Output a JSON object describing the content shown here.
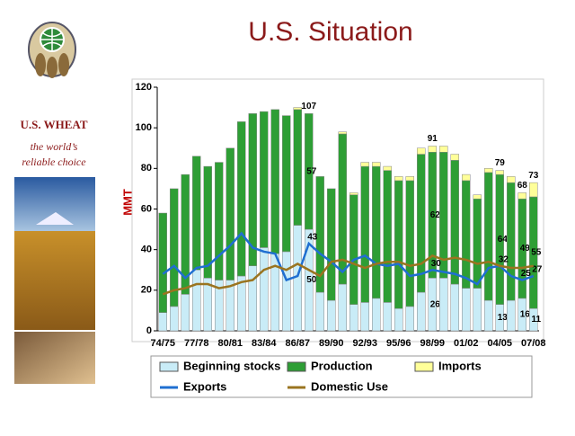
{
  "brand": {
    "name": "U.S. WHEAT",
    "tagline_1": "the world’s",
    "tagline_2": "reliable choice"
  },
  "chart_data": {
    "type": "stacked-bar-line",
    "title": "U.S. Situation",
    "y_label": "MMT",
    "categories": [
      "74/75",
      null,
      null,
      "77/78",
      null,
      null,
      "80/81",
      null,
      null,
      "83/84",
      null,
      null,
      "86/87",
      null,
      null,
      "89/90",
      null,
      null,
      "92/93",
      null,
      null,
      "95/96",
      null,
      null,
      "98/99",
      null,
      null,
      "01/02",
      null,
      null,
      "04/05",
      null,
      null,
      "07/08"
    ],
    "ylim": [
      0,
      120
    ],
    "yticks": [
      0,
      20,
      40,
      60,
      80,
      100,
      120
    ],
    "series": [
      {
        "name": "Beginning stocks",
        "kind": "bar",
        "color": "#c9ecf7",
        "values": [
          9,
          12,
          18,
          30,
          26,
          25,
          25,
          27,
          32,
          41,
          38,
          39,
          52,
          50,
          19,
          15,
          23,
          13,
          14,
          16,
          14,
          11,
          12,
          19,
          26,
          26,
          23,
          21,
          21,
          15,
          13,
          15,
          16,
          11
        ],
        "value_labels": [
          null,
          null,
          null,
          null,
          null,
          null,
          null,
          null,
          null,
          null,
          null,
          null,
          null,
          "50",
          null,
          null,
          null,
          null,
          null,
          null,
          null,
          null,
          null,
          null,
          "26",
          null,
          null,
          null,
          null,
          null,
          "13",
          null,
          "16",
          "11"
        ]
      },
      {
        "name": "Production",
        "kind": "bar",
        "color": "#2e9e35",
        "values": [
          49,
          58,
          59,
          56,
          55,
          58,
          65,
          76,
          75,
          67,
          71,
          67,
          57,
          57,
          57,
          55,
          74,
          54,
          67,
          65,
          65,
          63,
          62,
          68,
          62,
          62,
          61,
          53,
          44,
          63,
          64,
          58,
          49,
          55
        ],
        "value_labels": [
          null,
          null,
          null,
          null,
          null,
          null,
          null,
          null,
          null,
          null,
          null,
          null,
          null,
          "57",
          null,
          null,
          null,
          null,
          null,
          null,
          null,
          null,
          null,
          null,
          "62",
          null,
          null,
          null,
          null,
          null,
          "64",
          null,
          "49",
          "55"
        ]
      },
      {
        "name": "Imports",
        "kind": "bar",
        "color": "#ffff99",
        "values": [
          0,
          0,
          0,
          0,
          0,
          0,
          0,
          0,
          0,
          0,
          0,
          0,
          1,
          0,
          0,
          0,
          1,
          1,
          2,
          2,
          2,
          2,
          2,
          3,
          3,
          3,
          3,
          3,
          2,
          2,
          2,
          3,
          3,
          7
        ]
      },
      {
        "name": "Exports",
        "kind": "line",
        "color": "#1f6fd1",
        "values": [
          28,
          32,
          26,
          31,
          32,
          37,
          42,
          48,
          41,
          39,
          38,
          25,
          27,
          43,
          38,
          34,
          29,
          35,
          37,
          33,
          32,
          33,
          27,
          28,
          30,
          29,
          28,
          26,
          23,
          31,
          32,
          27,
          25,
          27
        ],
        "value_labels": [
          null,
          null,
          null,
          null,
          null,
          null,
          null,
          null,
          null,
          null,
          null,
          null,
          null,
          "43",
          null,
          null,
          null,
          null,
          null,
          null,
          null,
          null,
          null,
          null,
          "30",
          null,
          null,
          null,
          null,
          null,
          "32",
          null,
          "25",
          "27"
        ]
      },
      {
        "name": "Domestic Use",
        "kind": "line",
        "color": "#9a7420",
        "values": [
          18,
          20,
          21,
          23,
          23,
          21,
          22,
          24,
          25,
          30,
          32,
          30,
          33,
          30,
          27,
          34,
          35,
          33,
          31,
          33,
          34,
          34,
          32,
          33,
          37,
          35,
          36,
          35,
          33,
          34,
          32,
          31,
          31,
          32
        ]
      }
    ],
    "total_labels": [
      null,
      null,
      null,
      null,
      null,
      null,
      null,
      null,
      null,
      null,
      null,
      null,
      null,
      107,
      null,
      null,
      null,
      null,
      null,
      null,
      null,
      null,
      null,
      null,
      91,
      null,
      null,
      null,
      null,
      null,
      79,
      null,
      68,
      73
    ]
  }
}
